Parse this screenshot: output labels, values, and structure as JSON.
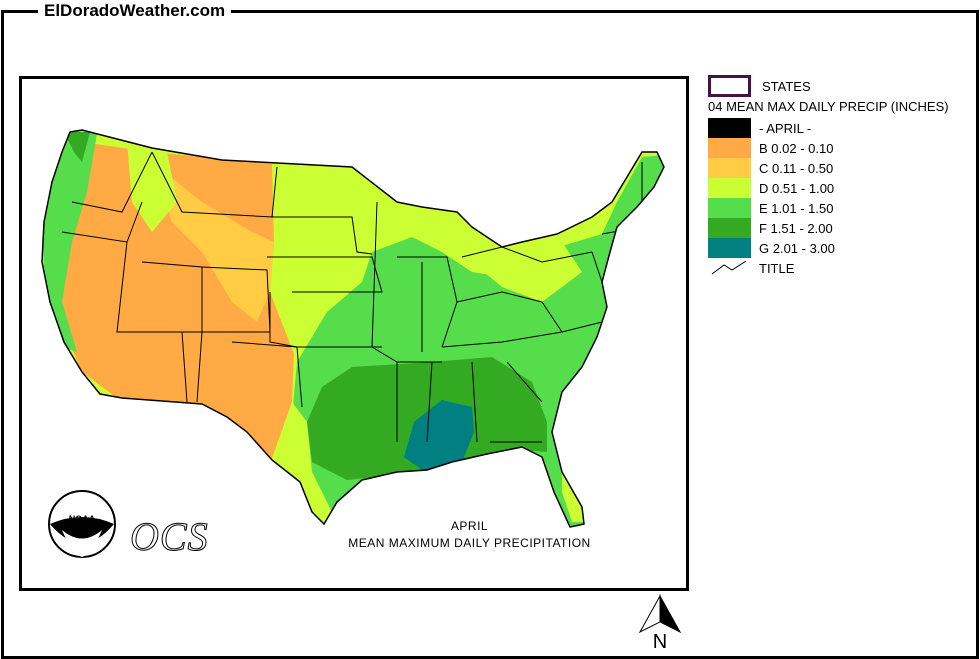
{
  "header": {
    "site_title": "ElDoradoWeather.com"
  },
  "legend": {
    "states_label": "STATES",
    "title": "04 MEAN MAX DAILY PRECIP (INCHES)",
    "items": [
      {
        "label": "- APRIL -",
        "color": "#000000"
      },
      {
        "label": "B 0.02 - 0.10",
        "color": "#ffaa44"
      },
      {
        "label": "C 0.11 - 0.50",
        "color": "#ffcc44"
      },
      {
        "label": "D 0.51 - 1.00",
        "color": "#ccff33"
      },
      {
        "label": "E 1.01 - 1.50",
        "color": "#55dd4c"
      },
      {
        "label": "F 1.51 - 2.00",
        "color": "#33aa22"
      },
      {
        "label": "G 2.01 - 3.00",
        "color": "#008080"
      }
    ],
    "title_line_label": "TITLE"
  },
  "map": {
    "caption_line1": "APRIL",
    "caption_line2": "MEAN MAXIMUM DAILY PRECIPITATION",
    "logo_noaa": "NOAA",
    "logo_ocs": "OCS",
    "north_label": "N"
  }
}
